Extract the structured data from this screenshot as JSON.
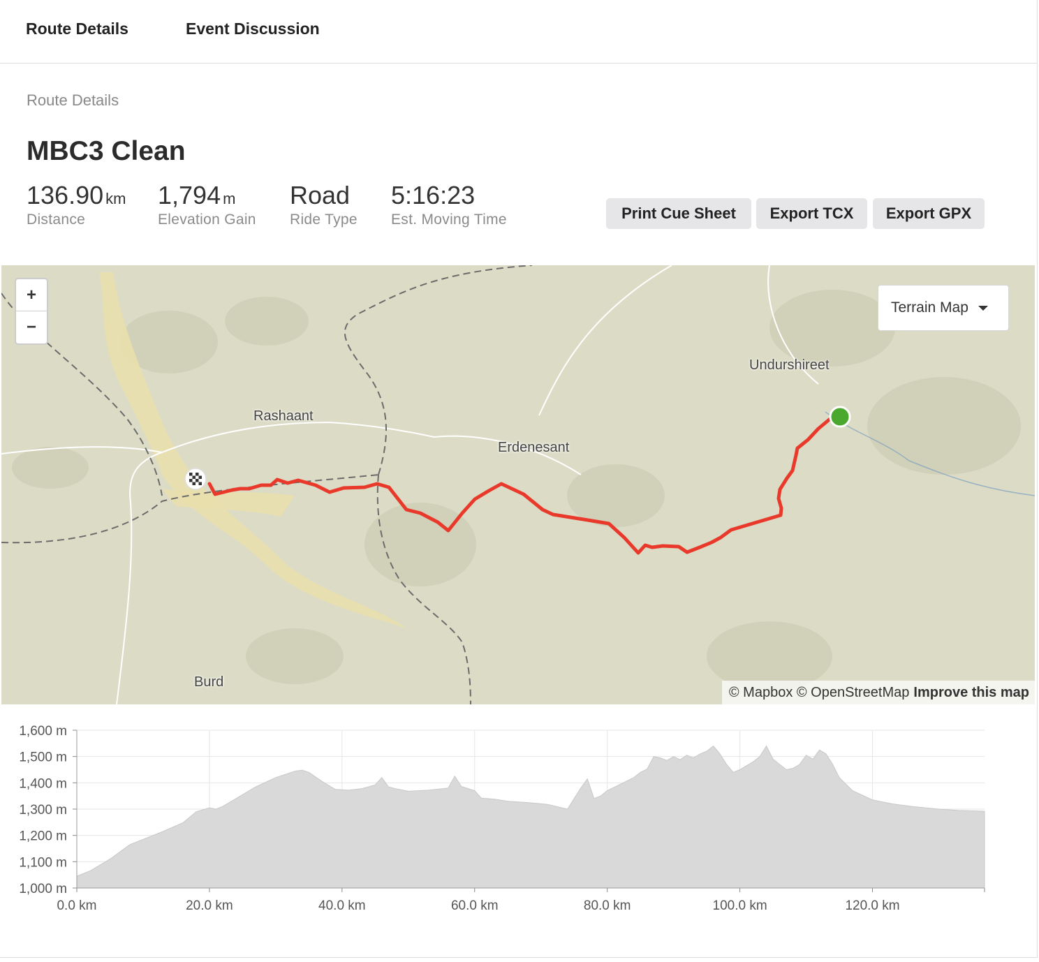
{
  "tabs": {
    "route_details": "Route Details",
    "event_discussion": "Event Discussion"
  },
  "section_label": "Route Details",
  "route": {
    "name": "MBC3 Clean",
    "stats": [
      {
        "value": "136.90",
        "unit": "km",
        "label": "Distance"
      },
      {
        "value": "1,794",
        "unit": "m",
        "label": "Elevation Gain"
      },
      {
        "value": "Road",
        "unit": "",
        "label": "Ride Type"
      },
      {
        "value": "5:16:23",
        "unit": "",
        "label": "Est. Moving Time"
      }
    ]
  },
  "actions": {
    "print": "Print Cue Sheet",
    "tcx": "Export TCX",
    "gpx": "Export GPX"
  },
  "map": {
    "zoom_in": "+",
    "zoom_out": "−",
    "layer": "Terrain Map",
    "places": [
      "Rashaant",
      "Erdenesant",
      "Undurshireet",
      "Burd"
    ],
    "attribution": "© Mapbox © OpenStreetMap",
    "improve": "Improve this map",
    "route_color": "#e8392b",
    "start_color": "#4aa82e"
  },
  "chart_data": {
    "type": "area",
    "x": [
      0,
      2,
      5,
      8,
      10,
      13,
      16,
      18,
      20,
      21,
      22,
      24,
      27,
      30,
      33,
      34,
      35,
      37,
      39,
      41,
      43,
      45,
      46,
      47,
      48,
      50,
      53,
      56,
      57,
      58,
      60,
      61,
      63,
      65,
      68,
      71,
      74,
      76,
      77,
      78,
      79,
      80,
      82,
      84,
      85,
      86,
      87,
      88,
      89,
      90,
      91,
      92,
      93,
      94,
      95,
      96,
      97,
      98,
      99,
      100,
      101,
      102,
      103,
      104,
      105,
      106,
      107,
      108,
      109,
      110,
      111,
      112,
      113,
      114,
      115,
      117,
      120,
      123,
      126,
      130,
      133,
      136.9
    ],
    "y": [
      1045,
      1065,
      1110,
      1165,
      1185,
      1215,
      1248,
      1290,
      1305,
      1300,
      1310,
      1340,
      1385,
      1420,
      1445,
      1448,
      1440,
      1405,
      1375,
      1372,
      1378,
      1392,
      1420,
      1385,
      1378,
      1368,
      1372,
      1380,
      1425,
      1386,
      1370,
      1342,
      1338,
      1330,
      1325,
      1318,
      1300,
      1380,
      1415,
      1340,
      1350,
      1370,
      1395,
      1420,
      1440,
      1452,
      1500,
      1495,
      1485,
      1500,
      1488,
      1505,
      1495,
      1510,
      1520,
      1540,
      1510,
      1470,
      1440,
      1450,
      1465,
      1480,
      1500,
      1540,
      1490,
      1470,
      1450,
      1455,
      1470,
      1505,
      1490,
      1525,
      1510,
      1470,
      1420,
      1370,
      1335,
      1320,
      1310,
      1300,
      1295,
      1292
    ],
    "xlabel": "",
    "ylabel": "",
    "xlim": [
      0,
      136.9
    ],
    "ylim": [
      1000,
      1600
    ],
    "x_ticks": [
      "0.0 km",
      "20.0 km",
      "40.0 km",
      "60.0 km",
      "80.0 km",
      "100.0 km",
      "120.0 km"
    ],
    "y_ticks": [
      "1,000 m",
      "1,100 m",
      "1,200 m",
      "1,300 m",
      "1,400 m",
      "1,500 m",
      "1,600 m"
    ],
    "grid": true,
    "fill_color": "#d9d9d9"
  }
}
